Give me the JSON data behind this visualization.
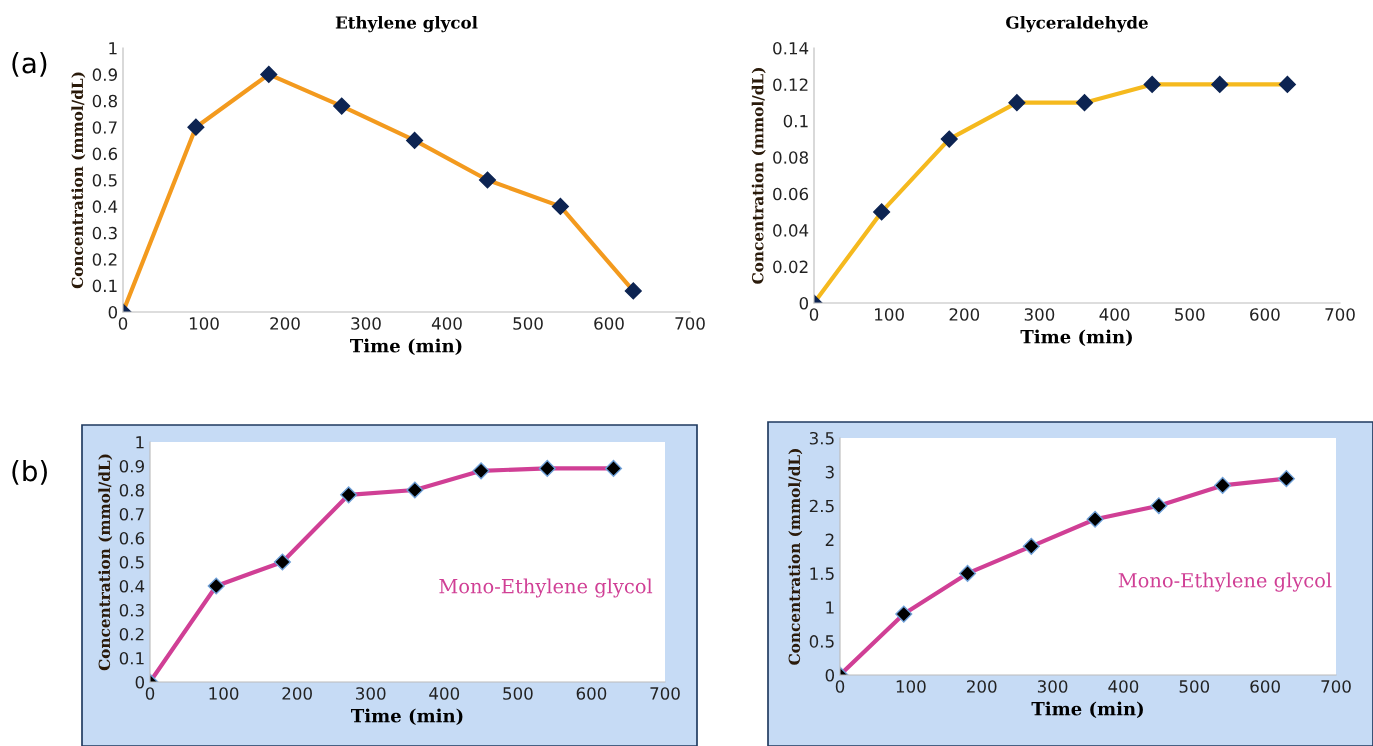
{
  "chart_data": [
    {
      "type": "line",
      "title": "Ethylene glycol",
      "xlabel": "Time (min)",
      "ylabel": "Concentration (mmol/dL)",
      "annotations": [
        "(a)"
      ],
      "x": [
        0,
        90,
        180,
        270,
        360,
        450,
        540,
        630
      ],
      "series": [
        {
          "color": "#f39a1e",
          "values": [
            0,
            0.7,
            0.9,
            0.78,
            0.65,
            0.5,
            0.4,
            0.08
          ]
        }
      ],
      "xlim": [
        0,
        700
      ],
      "xticks": [
        0,
        100,
        200,
        300,
        400,
        500,
        600,
        700
      ],
      "ylim": [
        0,
        1
      ],
      "yticks": [
        0,
        0.1,
        0.2,
        0.3,
        0.4,
        0.5,
        0.6,
        0.7,
        0.8,
        0.9,
        1
      ],
      "marker": "diamond",
      "line_style": "solid"
    },
    {
      "type": "line",
      "title": "Glyceraldehyde",
      "xlabel": "Time (min)",
      "ylabel": "Concentration (mmol/dL)",
      "x": [
        0,
        90,
        180,
        270,
        360,
        450,
        540,
        630
      ],
      "series": [
        {
          "color": "#f5b91e",
          "values": [
            0,
            0.05,
            0.09,
            0.11,
            0.11,
            0.12,
            0.12,
            0.12
          ]
        }
      ],
      "xlim": [
        0,
        700
      ],
      "xticks": [
        0,
        100,
        200,
        300,
        400,
        500,
        600,
        700
      ],
      "ylim": [
        0,
        0.14
      ],
      "yticks": [
        0,
        0.02,
        0.04,
        0.06,
        0.08,
        0.1,
        0.12,
        0.14
      ],
      "marker": "diamond",
      "line_style": "solid"
    },
    {
      "type": "line",
      "xlabel": "Time (min)",
      "ylabel": "Concentration (mmol/dL)",
      "annotations": [
        "(b)",
        "Mono-Ethylene glycol"
      ],
      "x": [
        0,
        90,
        180,
        270,
        360,
        450,
        540,
        630
      ],
      "series": [
        {
          "color": "#d03f95",
          "values": [
            0,
            0.4,
            0.5,
            0.78,
            0.8,
            0.88,
            0.89,
            0.89
          ]
        }
      ],
      "xlim": [
        0,
        700
      ],
      "xticks": [
        0,
        100,
        200,
        300,
        400,
        500,
        600,
        700
      ],
      "ylim": [
        0,
        1
      ],
      "yticks": [
        0,
        0.1,
        0.2,
        0.3,
        0.4,
        0.5,
        0.6,
        0.7,
        0.8,
        0.9,
        1
      ],
      "marker": "diamond",
      "line_style": "solid"
    },
    {
      "type": "line",
      "xlabel": "Time (min)",
      "ylabel": "Concentration (mmol/dL)",
      "annotations": [
        "Mono-Ethylene glycol"
      ],
      "x": [
        0,
        90,
        180,
        270,
        360,
        450,
        540,
        630
      ],
      "series": [
        {
          "color": "#d03f95",
          "values": [
            0,
            0.9,
            1.5,
            1.9,
            2.3,
            2.5,
            2.8,
            2.9
          ]
        }
      ],
      "xlim": [
        0,
        700
      ],
      "xticks": [
        0,
        100,
        200,
        300,
        400,
        500,
        600,
        700
      ],
      "ylim": [
        0,
        3.5
      ],
      "yticks": [
        0,
        0.5,
        1,
        1.5,
        2,
        2.5,
        3,
        3.5
      ],
      "marker": "diamond",
      "line_style": "solid"
    }
  ]
}
